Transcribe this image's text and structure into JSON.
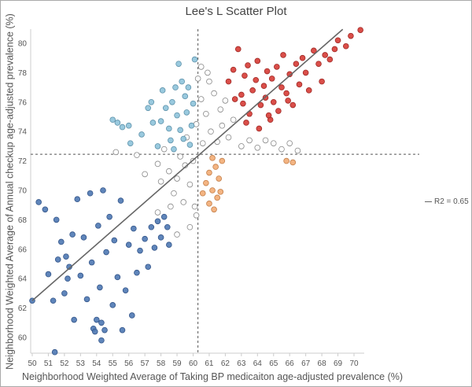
{
  "chart_data": {
    "type": "scatter",
    "title": "Lee's L Scatter Plot",
    "xlabel": "Neighborhood Weighted Average of Taking BP medicaiton age-adjusted prevalence (%)",
    "ylabel": "Neighborhood Weighted Average of Annual checkup age-adjusted prevalence (%)",
    "xlim": [
      49.9,
      70.7
    ],
    "ylim": [
      58.9,
      81
    ],
    "xticks": [
      50,
      51,
      52,
      53,
      54,
      55,
      56,
      57,
      58,
      59,
      60,
      61,
      62,
      63,
      64,
      65,
      66,
      67,
      68,
      69,
      70
    ],
    "yticks": [
      60,
      62,
      64,
      66,
      68,
      70,
      72,
      74,
      76,
      78,
      80
    ],
    "grid": false,
    "mean_lines": {
      "x": 60.3,
      "y": 72.45
    },
    "trendline": {
      "from": [
        50,
        62.5
      ],
      "to": [
        69.3,
        80.95
      ],
      "color": "#666666",
      "legend": "R2 = 0.65"
    },
    "legend_position": "right",
    "series": [
      {
        "color": "#ffffff",
        "stroke": "#888888",
        "points": [
          [
            55.2,
            72.6
          ],
          [
            56.5,
            72.4
          ],
          [
            57,
            71.1
          ],
          [
            57.8,
            71.8
          ],
          [
            58,
            70.6
          ],
          [
            58.2,
            72.8
          ],
          [
            58.5,
            71.3
          ],
          [
            58.8,
            69.8
          ],
          [
            59,
            70.8
          ],
          [
            59.2,
            72.3
          ],
          [
            59.4,
            69.2
          ],
          [
            59.5,
            71.7
          ],
          [
            59.6,
            73.6
          ],
          [
            59.8,
            70.4
          ],
          [
            60,
            72
          ],
          [
            60.1,
            68.9
          ],
          [
            60.2,
            74.5
          ],
          [
            60.3,
            77.6
          ],
          [
            60.5,
            76.2
          ],
          [
            60.6,
            73.2
          ],
          [
            60.8,
            75.2
          ],
          [
            61,
            77.4
          ],
          [
            61.1,
            74
          ],
          [
            61.3,
            76.6
          ],
          [
            61.5,
            73.3
          ],
          [
            61.7,
            75.5
          ],
          [
            61.8,
            74.4
          ],
          [
            62,
            76.1
          ],
          [
            62.2,
            73.6
          ],
          [
            62.5,
            74.8
          ],
          [
            63,
            73
          ],
          [
            63.5,
            73.4
          ],
          [
            64,
            72.9
          ],
          [
            64.5,
            73.4
          ],
          [
            65,
            73.2
          ],
          [
            65.5,
            72.8
          ],
          [
            66,
            73.2
          ],
          [
            66.5,
            72.7
          ],
          [
            59,
            67
          ],
          [
            59.8,
            67.5
          ],
          [
            60.2,
            68.3
          ],
          [
            58.6,
            68.9
          ],
          [
            57.8,
            68.5
          ],
          [
            60.5,
            78.4
          ],
          [
            60.9,
            78
          ]
        ]
      },
      {
        "color": "#d63b35",
        "stroke": "#a02a26",
        "points": [
          [
            62.2,
            77.4
          ],
          [
            62.5,
            78.2
          ],
          [
            62.8,
            79.6
          ],
          [
            63,
            76.5
          ],
          [
            63.2,
            77.8
          ],
          [
            63.4,
            78.5
          ],
          [
            63.5,
            75.2
          ],
          [
            63.7,
            76.8
          ],
          [
            63.9,
            77.5
          ],
          [
            64,
            78.8
          ],
          [
            64.1,
            74.2
          ],
          [
            64.2,
            75.8
          ],
          [
            64.4,
            77.1
          ],
          [
            64.5,
            76.3
          ],
          [
            64.6,
            78.1
          ],
          [
            64.8,
            74.8
          ],
          [
            64.9,
            77.6
          ],
          [
            65,
            76
          ],
          [
            65.2,
            78.4
          ],
          [
            65.3,
            75.4
          ],
          [
            65.5,
            77
          ],
          [
            65.6,
            79.2
          ],
          [
            65.8,
            76.6
          ],
          [
            66,
            77.9
          ],
          [
            66.2,
            75.8
          ],
          [
            66.4,
            78.6
          ],
          [
            66.6,
            77.2
          ],
          [
            66.8,
            79
          ],
          [
            67,
            78
          ],
          [
            67.2,
            76.8
          ],
          [
            67.5,
            79.5
          ],
          [
            67.8,
            78.6
          ],
          [
            68,
            77.4
          ],
          [
            68.2,
            79.2
          ],
          [
            68.5,
            78.9
          ],
          [
            68.8,
            79.6
          ],
          [
            69,
            80.2
          ],
          [
            69.5,
            79.8
          ],
          [
            69.8,
            80.5
          ],
          [
            70.4,
            80.9
          ],
          [
            63.3,
            74.6
          ],
          [
            64.7,
            75.1
          ],
          [
            65.9,
            76.1
          ],
          [
            62.6,
            76.2
          ],
          [
            63.1,
            75.9
          ]
        ]
      },
      {
        "color": "#8ec3da",
        "stroke": "#5f93ab",
        "points": [
          [
            55,
            74.8
          ],
          [
            55.3,
            74.6
          ],
          [
            55.6,
            74.3
          ],
          [
            56,
            74.4
          ],
          [
            56.1,
            73.2
          ],
          [
            56.8,
            73.8
          ],
          [
            57.2,
            75.6
          ],
          [
            57.4,
            76
          ],
          [
            57.5,
            74.6
          ],
          [
            57.8,
            73
          ],
          [
            58,
            74.7
          ],
          [
            58.1,
            76.8
          ],
          [
            58.3,
            75.6
          ],
          [
            58.5,
            74.2
          ],
          [
            58.6,
            73.4
          ],
          [
            58.7,
            76
          ],
          [
            58.9,
            77
          ],
          [
            59,
            75.1
          ],
          [
            59.1,
            78.6
          ],
          [
            59.2,
            74.1
          ],
          [
            59.3,
            77.4
          ],
          [
            59.4,
            73.5
          ],
          [
            59.5,
            76.4
          ],
          [
            59.6,
            75.3
          ],
          [
            59.7,
            77
          ],
          [
            59.9,
            74.4
          ],
          [
            60,
            75.9
          ],
          [
            60.1,
            78.9
          ],
          [
            58.8,
            72.8
          ],
          [
            59.8,
            73.1
          ]
        ]
      },
      {
        "color": "#f2ac74",
        "stroke": "#c47f4a",
        "points": [
          [
            60.6,
            69.8
          ],
          [
            60.8,
            70.5
          ],
          [
            61,
            69.1
          ],
          [
            61,
            71.2
          ],
          [
            61.2,
            70
          ],
          [
            61.3,
            68.7
          ],
          [
            61.4,
            71.6
          ],
          [
            61.5,
            69.5
          ],
          [
            61.6,
            70.8
          ],
          [
            61.8,
            72
          ],
          [
            61.2,
            72.2
          ],
          [
            61.7,
            69.9
          ],
          [
            65.8,
            72
          ],
          [
            66.2,
            71.9
          ]
        ]
      },
      {
        "color": "#4e78b3",
        "stroke": "#34568a",
        "points": [
          [
            50,
            62.5
          ],
          [
            50.4,
            69.2
          ],
          [
            50.8,
            68.7
          ],
          [
            51,
            64.3
          ],
          [
            51.3,
            62.5
          ],
          [
            51.4,
            59
          ],
          [
            51.5,
            68
          ],
          [
            51.8,
            66.5
          ],
          [
            52,
            63
          ],
          [
            52.1,
            65.5
          ],
          [
            52.3,
            64.8
          ],
          [
            52.5,
            67
          ],
          [
            52.6,
            61.2
          ],
          [
            52.8,
            69.4
          ],
          [
            53,
            64.2
          ],
          [
            53.2,
            66.8
          ],
          [
            53.4,
            62.6
          ],
          [
            53.6,
            69.8
          ],
          [
            53.7,
            65.1
          ],
          [
            53.8,
            60.6
          ],
          [
            54,
            61.2
          ],
          [
            54.1,
            67.6
          ],
          [
            54.2,
            63.4
          ],
          [
            54.3,
            59.8
          ],
          [
            54.4,
            70
          ],
          [
            54.5,
            60.5
          ],
          [
            54.6,
            65.8
          ],
          [
            54.8,
            68.2
          ],
          [
            55,
            62.2
          ],
          [
            55.1,
            66.6
          ],
          [
            55.3,
            64.1
          ],
          [
            55.5,
            69.3
          ],
          [
            55.6,
            60.5
          ],
          [
            55.8,
            63.2
          ],
          [
            56,
            66.3
          ],
          [
            56.2,
            61.5
          ],
          [
            56.3,
            67.4
          ],
          [
            56.5,
            64.4
          ],
          [
            56.7,
            65.9
          ],
          [
            57,
            66.7
          ],
          [
            57.2,
            64.8
          ],
          [
            57.4,
            67.5
          ],
          [
            57.6,
            66.1
          ],
          [
            57.8,
            67.9
          ],
          [
            58,
            66.8
          ],
          [
            58.2,
            68.2
          ],
          [
            58.4,
            67.5
          ],
          [
            58.5,
            66.3
          ],
          [
            54.3,
            61
          ],
          [
            53.9,
            60.4
          ],
          [
            52.2,
            64
          ],
          [
            51.6,
            65.3
          ]
        ]
      }
    ]
  }
}
